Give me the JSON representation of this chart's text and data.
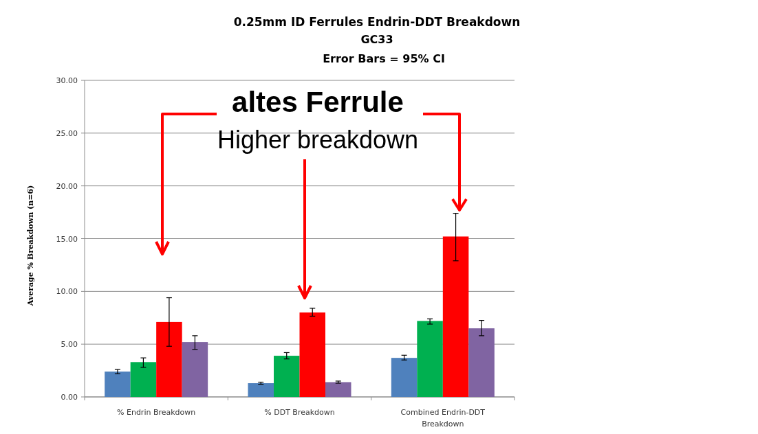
{
  "chart_data": {
    "type": "bar",
    "title": "0.25mm ID Ferrules Endrin-DDT Breakdown",
    "subtitle": "GC33",
    "annotations": [
      "Error Bars = 95% CI",
      "altes Ferrule",
      "Higher breakdown"
    ],
    "ylabel": "Average % Breakdown  (n=6)",
    "categories": [
      "% Endrin Breakdown",
      "% DDT Breakdown",
      "Combined Endrin-DDT Breakdown"
    ],
    "series": [
      {
        "color": "#4f81bd",
        "values": [
          2.4,
          1.3,
          3.7
        ],
        "errors": [
          [
            2.2,
            2.6
          ],
          [
            1.2,
            1.4
          ],
          [
            3.5,
            3.95
          ]
        ]
      },
      {
        "color": "#00b050",
        "values": [
          3.3,
          3.9,
          7.2
        ],
        "errors": [
          [
            2.8,
            3.7
          ],
          [
            3.6,
            4.2
          ],
          [
            6.9,
            7.4
          ]
        ]
      },
      {
        "color": "#ff0000",
        "values": [
          7.1,
          8.0,
          15.2
        ],
        "errors": [
          [
            4.8,
            9.4
          ],
          [
            7.65,
            8.4
          ],
          [
            12.9,
            17.4
          ]
        ]
      },
      {
        "color": "#8064a2",
        "values": [
          5.2,
          1.4,
          6.5
        ],
        "errors": [
          [
            4.5,
            5.8
          ],
          [
            1.3,
            1.5
          ],
          [
            5.8,
            7.25
          ]
        ]
      }
    ],
    "ylim": [
      0,
      30
    ],
    "yticks": [
      {
        "value": 0,
        "label": "0.00"
      },
      {
        "value": 5,
        "label": "5.00"
      },
      {
        "value": 10,
        "label": "10.00"
      },
      {
        "value": 15,
        "label": "15.00"
      },
      {
        "value": 20,
        "label": "20.00"
      },
      {
        "value": 25,
        "label": "25.00"
      },
      {
        "value": 30,
        "label": "30.00"
      }
    ],
    "grid": "y"
  }
}
